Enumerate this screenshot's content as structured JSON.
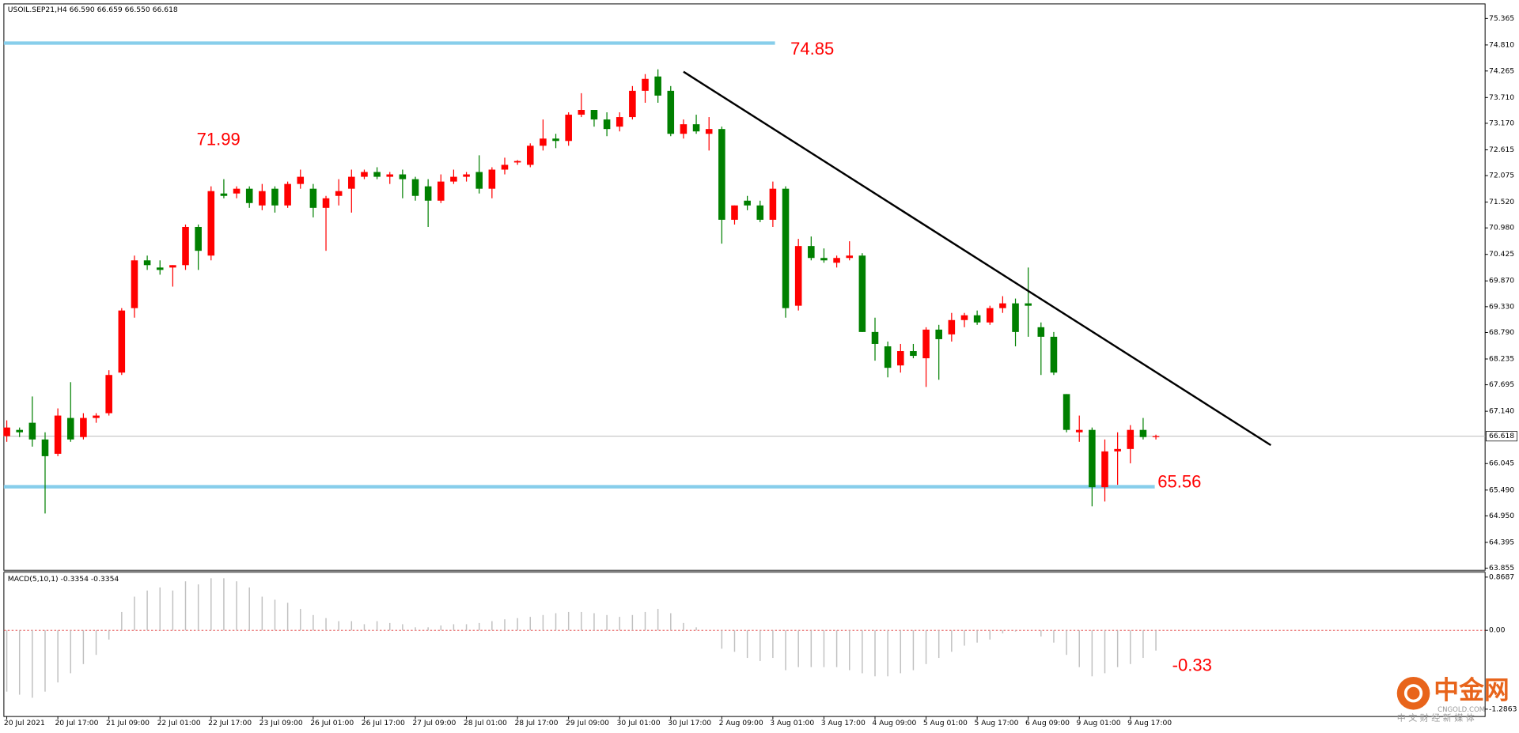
{
  "chart_data": [
    {
      "type": "candlestick",
      "title": "USOIL.SEP21,H4 66.590 66.659 66.550 66.618",
      "categories": [
        "20 Jul 2021",
        null,
        null,
        null,
        "20 Jul 17:00",
        null,
        null,
        null,
        "21 Jul 09:00",
        null,
        null,
        null,
        "22 Jul 01:00",
        null,
        null,
        null,
        "22 Jul 17:00",
        null,
        null,
        null,
        "23 Jul 09:00",
        null,
        null,
        null,
        "26 Jul 01:00",
        null,
        null,
        null,
        "26 Jul 17:00",
        null,
        null,
        null,
        "27 Jul 09:00",
        null,
        null,
        null,
        "28 Jul 01:00",
        null,
        null,
        null,
        "28 Jul 17:00",
        null,
        null,
        null,
        "29 Jul 09:00",
        null,
        null,
        null,
        "30 Jul 01:00",
        null,
        null,
        null,
        "30 Jul 17:00",
        null,
        null,
        null,
        "2 Aug 09:00",
        null,
        null,
        null,
        "3 Aug 01:00",
        null,
        null,
        null,
        "3 Aug 17:00",
        null,
        null,
        null,
        "4 Aug 09:00",
        null,
        null,
        null,
        "5 Aug 01:00",
        null,
        null,
        null,
        "5 Aug 17:00",
        null,
        null,
        null,
        "6 Aug 09:00",
        null,
        null,
        null,
        "9 Aug 01:00",
        null,
        null,
        null,
        "9 Aug 17:00",
        null,
        null
      ],
      "open": [
        66.62,
        66.75,
        66.9,
        66.55,
        66.25,
        67.0,
        66.6,
        67.0,
        67.1,
        67.95,
        69.3,
        70.3,
        70.15,
        70.15,
        70.2,
        71.0,
        70.4,
        71.7,
        71.7,
        71.8,
        71.45,
        71.8,
        71.45,
        71.9,
        71.8,
        71.4,
        71.65,
        71.8,
        72.05,
        72.15,
        72.05,
        72.1,
        72.0,
        71.85,
        71.55,
        71.95,
        72.05,
        72.15,
        71.8,
        72.2,
        72.35,
        72.3,
        72.7,
        72.85,
        72.8,
        73.35,
        73.45,
        73.25,
        73.1,
        73.3,
        73.85,
        74.15,
        73.85,
        72.95,
        73.15,
        72.95,
        73.05,
        71.15,
        71.55,
        71.45,
        71.15,
        71.8,
        69.35,
        70.6,
        70.35,
        70.25,
        70.35,
        70.4,
        68.8,
        68.5,
        68.1,
        68.4,
        68.25,
        68.85,
        68.75,
        69.05,
        69.15,
        69.0,
        69.3,
        69.4,
        69.4,
        68.9,
        68.7,
        67.5,
        66.7,
        66.75,
        65.55,
        66.3,
        66.35,
        66.75,
        66.6
      ],
      "high": [
        66.95,
        66.8,
        67.45,
        66.7,
        67.2,
        67.75,
        67.1,
        67.1,
        68.0,
        69.3,
        70.4,
        70.4,
        70.3,
        70.2,
        71.05,
        71.05,
        71.85,
        72.0,
        71.85,
        71.85,
        71.9,
        71.85,
        71.95,
        72.2,
        71.9,
        71.65,
        72.0,
        72.2,
        72.2,
        72.25,
        72.15,
        72.2,
        72.05,
        72.0,
        72.1,
        72.2,
        72.15,
        72.5,
        72.25,
        72.45,
        72.4,
        72.75,
        73.25,
        72.95,
        73.4,
        73.8,
        73.45,
        73.4,
        73.4,
        73.95,
        74.2,
        74.3,
        73.95,
        73.25,
        73.35,
        73.3,
        73.1,
        71.45,
        71.65,
        71.55,
        71.95,
        71.85,
        70.75,
        70.8,
        70.55,
        70.4,
        70.7,
        70.45,
        69.1,
        68.6,
        68.55,
        68.55,
        68.9,
        68.95,
        69.2,
        69.2,
        69.25,
        69.35,
        69.55,
        69.5,
        70.15,
        69.0,
        68.8,
        67.5,
        67.05,
        66.8,
        66.55,
        66.7,
        66.85,
        67.0,
        66.65
      ],
      "low": [
        66.5,
        66.6,
        66.4,
        65.0,
        66.2,
        66.5,
        66.55,
        66.9,
        67.05,
        67.9,
        69.1,
        70.1,
        70.0,
        69.75,
        70.1,
        70.1,
        70.3,
        71.6,
        71.6,
        71.4,
        71.35,
        71.3,
        71.4,
        71.8,
        71.2,
        70.5,
        71.45,
        71.3,
        72.0,
        72.0,
        71.9,
        71.6,
        71.55,
        71.0,
        71.5,
        71.9,
        71.95,
        71.7,
        71.6,
        72.1,
        72.3,
        72.25,
        72.6,
        72.65,
        72.7,
        73.3,
        73.1,
        72.9,
        73.0,
        73.25,
        73.6,
        73.6,
        72.9,
        72.85,
        72.95,
        72.6,
        70.65,
        71.05,
        71.35,
        71.1,
        71.0,
        69.1,
        69.25,
        70.3,
        70.25,
        70.15,
        70.3,
        68.8,
        68.2,
        67.85,
        67.95,
        68.25,
        67.65,
        67.8,
        68.6,
        68.9,
        68.95,
        68.95,
        69.2,
        68.5,
        68.7,
        67.9,
        67.9,
        66.7,
        66.5,
        65.15,
        65.25,
        65.6,
        66.05,
        66.55,
        66.55
      ],
      "close": [
        66.8,
        66.7,
        66.55,
        66.2,
        67.05,
        66.55,
        67.0,
        67.05,
        67.9,
        69.25,
        70.3,
        70.2,
        70.1,
        70.2,
        71.0,
        70.5,
        71.75,
        71.65,
        71.8,
        71.5,
        71.75,
        71.45,
        71.9,
        72.05,
        71.4,
        71.6,
        71.75,
        72.05,
        72.15,
        72.05,
        72.1,
        72.0,
        71.65,
        71.55,
        71.95,
        72.05,
        72.1,
        71.8,
        72.2,
        72.3,
        72.38,
        72.7,
        72.85,
        72.8,
        73.35,
        73.45,
        73.25,
        73.05,
        73.3,
        73.85,
        74.1,
        73.75,
        72.95,
        73.15,
        73.0,
        73.05,
        71.15,
        71.45,
        71.45,
        71.15,
        71.8,
        69.3,
        70.6,
        70.35,
        70.3,
        70.35,
        70.4,
        68.8,
        68.55,
        68.05,
        68.4,
        68.3,
        68.85,
        68.65,
        69.05,
        69.15,
        69.0,
        69.3,
        69.4,
        68.8,
        69.35,
        68.7,
        67.95,
        66.75,
        66.75,
        65.55,
        66.3,
        66.35,
        66.75,
        66.6,
        66.62
      ],
      "up_color": "#ff0000",
      "down_color": "#008000",
      "ylim": [
        63.81,
        75.67
      ],
      "yticks": [
        75.365,
        {
          "value": 74.81,
          "label": "74.810"
        },
        74.265,
        {
          "value": 73.71,
          "label": "73.710"
        },
        {
          "value": 73.17,
          "label": "73.170"
        },
        72.615,
        72.075,
        {
          "value": 71.52,
          "label": "71.520"
        },
        {
          "value": 70.98,
          "label": "70.980"
        },
        70.425,
        {
          "value": 69.87,
          "label": "69.870"
        },
        {
          "value": 69.33,
          "label": "69.330"
        },
        {
          "value": 68.79,
          "label": "68.790"
        },
        68.235,
        67.695,
        {
          "value": 67.14,
          "label": "67.140"
        },
        66.045,
        {
          "value": 65.49,
          "label": "65.490"
        },
        {
          "value": 64.95,
          "label": "64.950"
        },
        64.395,
        63.855
      ],
      "levels": [
        74.85,
        65.56
      ],
      "level_color": "#87ceeb",
      "current_price": 66.618,
      "annotations": [
        "71.99"
      ],
      "trendline": {
        "start": {
          "index": 53,
          "price": 74.25
        },
        "end": {
          "index": 99,
          "price": 66.43
        }
      }
    },
    {
      "type": "bar",
      "title": "MACD(5,10,1) -0.3354 -0.3354",
      "color": "#c0c0c0",
      "values": [
        -1.0,
        -1.05,
        -1.1,
        -1.0,
        -0.85,
        -0.7,
        -0.55,
        -0.4,
        -0.15,
        0.3,
        0.55,
        0.65,
        0.7,
        0.65,
        0.8,
        0.75,
        0.85,
        0.85,
        0.8,
        0.7,
        0.55,
        0.5,
        0.45,
        0.35,
        0.25,
        0.2,
        0.15,
        0.15,
        0.1,
        0.15,
        0.12,
        0.1,
        0.05,
        0.05,
        0.08,
        0.1,
        0.1,
        0.12,
        0.15,
        0.18,
        0.2,
        0.22,
        0.25,
        0.28,
        0.3,
        0.3,
        0.28,
        0.25,
        0.22,
        0.25,
        0.3,
        0.35,
        0.28,
        0.12,
        0.05,
        0.0,
        -0.3,
        -0.35,
        -0.45,
        -0.5,
        -0.45,
        -0.65,
        -0.6,
        -0.6,
        -0.6,
        -0.6,
        -0.65,
        -0.7,
        -0.75,
        -0.75,
        -0.7,
        -0.65,
        -0.55,
        -0.45,
        -0.35,
        -0.25,
        -0.2,
        -0.15,
        -0.05,
        -0.02,
        0.0,
        -0.1,
        -0.2,
        -0.4,
        -0.6,
        -0.75,
        -0.7,
        -0.6,
        -0.55,
        -0.45,
        -0.33
      ],
      "ylim": [
        -1.406,
        0.948
      ],
      "yticks": [
        0.8687,
        {
          "value": 0,
          "label": "0.00"
        },
        -1.2863
      ],
      "annotations": [
        "-0.33"
      ]
    }
  ],
  "watermark": {
    "title": "中金网",
    "site": "CNGOLD.COM",
    "slogan": "中 文 财 经 新 媒 体"
  }
}
